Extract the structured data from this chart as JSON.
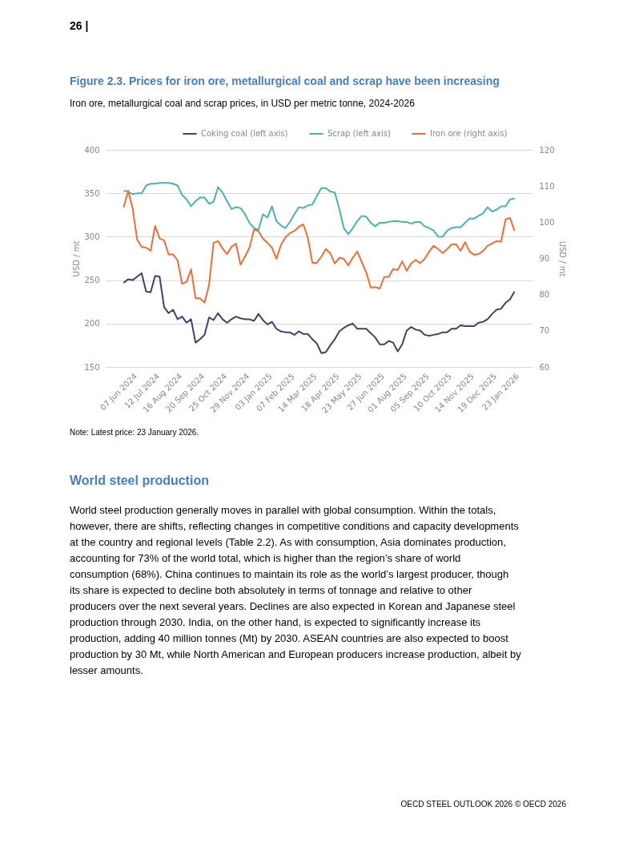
{
  "chart_data": {
    "type": "line",
    "title": "Figure 2.3. Prices for iron ore, metallurgical coal and scrap have been increasing",
    "subtitle": "Iron ore, metallurgical coal and scrap prices, in USD per metric tonne, 2024-2026",
    "ylabel": "USD / mt",
    "y2label": "USD / mt",
    "annotations": [
      "26 |",
      "Note: Latest price: 23 January 2026.",
      "World steel production",
      "World steel production generally moves in parallel with global consumption. Within the totals, however, there are shifts, reflecting changes in competitive conditions and capacity developments at the country and regional levels (Table 2.2). As with consumption, Asia dominates production, accounting for 73% of the world total, which is higher than the region’s share of world consumption (68%). China continues to maintain its role as the world’s largest producer, though its share is expected to decline both absolutely in terms of tonnage and relative to other producers over the next several years. Declines are also expected in Korean and Japanese steel production through 2030. India, on the other hand, is expected to significantly increase its production, adding 40 million tonnes (Mt) by 2030. ASEAN countries are also expected to boost production by 30 Mt, while North American and European producers increase production, albeit by lesser amounts.",
      "OECD STEEL OUTLOOK 2026 © OECD 2026"
    ],
    "x": [
      "2024-05-24",
      "2024-05-31",
      "2024-06-07",
      "2024-06-14",
      "2024-06-21",
      "2024-06-28",
      "2024-07-05",
      "2024-07-12",
      "2024-07-19",
      "2024-07-26",
      "2024-08-02",
      "2024-08-09",
      "2024-08-16",
      "2024-08-23",
      "2024-08-30",
      "2024-09-06",
      "2024-09-13",
      "2024-09-20",
      "2024-09-27",
      "2024-10-04",
      "2024-10-11",
      "2024-10-18",
      "2024-10-25",
      "2024-11-01",
      "2024-11-08",
      "2024-11-15",
      "2024-11-22",
      "2024-11-29",
      "2024-12-06",
      "2024-12-13",
      "2024-12-20",
      "2024-12-27",
      "2025-01-03",
      "2025-01-10",
      "2025-01-17",
      "2025-01-24",
      "2025-01-31",
      "2025-02-07",
      "2025-02-14",
      "2025-02-21",
      "2025-02-28",
      "2025-03-07",
      "2025-03-14",
      "2025-03-21",
      "2025-03-28",
      "2025-04-04",
      "2025-04-11",
      "2025-04-18",
      "2025-04-25",
      "2025-05-02",
      "2025-05-09",
      "2025-05-16",
      "2025-05-23",
      "2025-05-30",
      "2025-06-06",
      "2025-06-13",
      "2025-06-20",
      "2025-06-27",
      "2025-07-04",
      "2025-07-11",
      "2025-07-18",
      "2025-07-25",
      "2025-08-01",
      "2025-08-08",
      "2025-08-15",
      "2025-08-22",
      "2025-08-29",
      "2025-09-05",
      "2025-09-12",
      "2025-09-19",
      "2025-09-26",
      "2025-10-03",
      "2025-10-10",
      "2025-10-17",
      "2025-10-24",
      "2025-10-31",
      "2025-11-07",
      "2025-11-14",
      "2025-11-21",
      "2025-11-28",
      "2025-12-05",
      "2025-12-12",
      "2025-12-19",
      "2025-12-26",
      "2026-01-02",
      "2026-01-09",
      "2026-01-16",
      "2026-01-23"
    ],
    "series": [
      {
        "name": "Coking coal (left axis)",
        "color": "#3d4466",
        "axis": "y",
        "values": [
          247,
          251,
          250,
          254,
          258,
          237,
          236,
          255,
          254,
          219,
          212,
          216,
          205,
          208,
          201,
          205,
          178,
          182,
          187,
          207,
          204,
          212,
          205,
          201,
          205,
          208,
          206,
          205,
          205,
          203,
          211,
          204,
          199,
          202,
          194,
          191,
          190,
          190,
          187,
          191,
          188,
          188,
          182,
          177,
          166,
          167,
          175,
          182,
          191,
          195,
          198,
          200,
          194,
          194,
          194,
          189,
          184,
          176,
          176,
          180,
          178,
          168,
          176,
          192,
          196,
          193,
          192,
          187,
          186,
          187,
          188,
          190,
          190,
          194,
          194,
          198,
          197,
          197,
          197,
          201,
          202,
          205,
          211,
          216,
          217,
          224,
          228,
          237
        ]
      },
      {
        "name": "Scrap (left axis)",
        "color": "#4db3a6",
        "axis": "y",
        "values": [
          353,
          352,
          349,
          350,
          350,
          359,
          361,
          361,
          362,
          362,
          362,
          361,
          359,
          348,
          343,
          335,
          341,
          345,
          345,
          338,
          340,
          357,
          351,
          341,
          332,
          334,
          333,
          326,
          316,
          310,
          308,
          326,
          322,
          335,
          318,
          313,
          310,
          317,
          326,
          334,
          333,
          336,
          337,
          347,
          356,
          356,
          352,
          351,
          332,
          310,
          303,
          310,
          318,
          324,
          323,
          316,
          312,
          316,
          316,
          317,
          318,
          318,
          317,
          317,
          315,
          317,
          317,
          312,
          310,
          307,
          300,
          300,
          307,
          310,
          311,
          311,
          316,
          321,
          321,
          324,
          327,
          334,
          329,
          331,
          335,
          335,
          343,
          344
        ]
      },
      {
        "name": "Iron ore (right axis)",
        "color": "#e8703a",
        "axis": "y2",
        "values": [
          104.1,
          108.7,
          103.8,
          95.2,
          93.2,
          93.0,
          92.1,
          99.0,
          95.5,
          95.0,
          91.1,
          91.1,
          89.5,
          83.0,
          83.5,
          87.0,
          79.0,
          79.0,
          77.8,
          82.7,
          94.3,
          94.8,
          92.8,
          91.2,
          93.2,
          94.1,
          88.3,
          90.5,
          93.0,
          97.9,
          97.6,
          95.5,
          94.3,
          93.0,
          89.9,
          93.7,
          95.8,
          97.0,
          97.6,
          98.8,
          99.4,
          95.7,
          88.8,
          88.8,
          90.5,
          92.6,
          91.4,
          88.6,
          90.2,
          89.9,
          88.1,
          90.2,
          91.9,
          89.0,
          86.1,
          81.9,
          82.1,
          81.7,
          84.9,
          84.9,
          87.1,
          86.8,
          89.2,
          86.6,
          88.6,
          89.6,
          88.7,
          89.9,
          91.9,
          93.5,
          92.6,
          91.5,
          92.6,
          93.9,
          93.9,
          92.1,
          94.5,
          91.9,
          91.0,
          91.2,
          92.1,
          93.5,
          94.1,
          94.8,
          94.6,
          100.8,
          101.2,
          97.6
        ]
      }
    ],
    "xlim": [
      "2024-04-26",
      "2026-02-20"
    ],
    "xticks": [
      {
        "value": "2024-06-07",
        "label": "07 Jun 2024"
      },
      {
        "value": "2024-07-12",
        "label": "12 Jul 2024"
      },
      {
        "value": "2024-08-16",
        "label": "16 Aug 2024"
      },
      {
        "value": "2024-09-20",
        "label": "20 Sep 2024"
      },
      {
        "value": "2024-10-25",
        "label": "25 Oct 2024"
      },
      {
        "value": "2024-11-29",
        "label": "29 Nov 2024"
      },
      {
        "value": "2025-01-03",
        "label": "03 Jan 2025"
      },
      {
        "value": "2025-02-07",
        "label": "07 Feb 2025"
      },
      {
        "value": "2025-03-14",
        "label": "14 Mar 2025"
      },
      {
        "value": "2025-04-18",
        "label": "18 Apr 2025"
      },
      {
        "value": "2025-05-23",
        "label": "23 May 2025"
      },
      {
        "value": "2025-06-27",
        "label": "27 Jun 2025"
      },
      {
        "value": "2025-08-01",
        "label": "01 Aug 2025"
      },
      {
        "value": "2025-09-05",
        "label": "05 Sep 2025"
      },
      {
        "value": "2025-10-10",
        "label": "10 Oct 2025"
      },
      {
        "value": "2025-11-14",
        "label": "14 Nov 2025"
      },
      {
        "value": "2025-12-19",
        "label": "19 Dec 2025"
      },
      {
        "value": "2026-01-23",
        "label": "23 Jan 2026"
      }
    ],
    "ylim": [
      150,
      400
    ],
    "yticks": [
      150,
      200,
      250,
      300,
      350,
      400
    ],
    "y2lim": [
      60,
      120
    ],
    "y2ticks": [
      60,
      70,
      80,
      90,
      100,
      110,
      120
    ],
    "grid": "y",
    "legend": "top"
  }
}
